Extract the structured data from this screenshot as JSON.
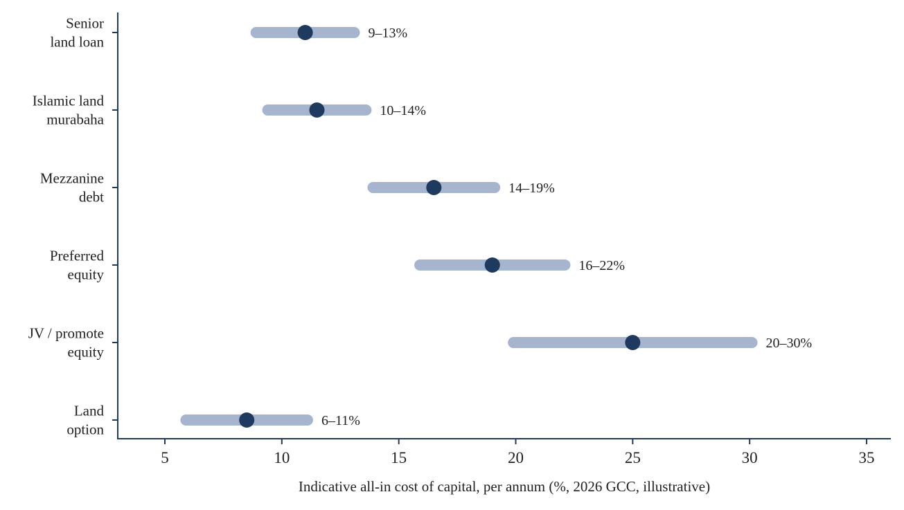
{
  "chart_data": {
    "type": "range-dot",
    "title": "",
    "xlabel": "Indicative all-in cost of capital, per annum (%, 2026 GCC, illustrative)",
    "ylabel": "",
    "xlim": [
      3,
      36
    ],
    "xticks": [
      5,
      10,
      15,
      20,
      25,
      30,
      35
    ],
    "grid": false,
    "legend": "none",
    "colors": {
      "range": "#a5b4cf",
      "point": "#1e3a5f",
      "axis": "#1e3a5f"
    },
    "rows": [
      {
        "label_lines": [
          "Senior",
          "land loan"
        ],
        "low": 8.9,
        "high": 13.1,
        "point": 11.0,
        "range_label": "9–13%"
      },
      {
        "label_lines": [
          "Islamic land",
          "murabaha"
        ],
        "low": 9.4,
        "high": 13.6,
        "point": 11.5,
        "range_label": "10–14%"
      },
      {
        "label_lines": [
          "Mezzanine",
          "debt"
        ],
        "low": 13.9,
        "high": 19.1,
        "point": 16.5,
        "range_label": "14–19%"
      },
      {
        "label_lines": [
          "Preferred",
          "equity"
        ],
        "low": 15.9,
        "high": 22.1,
        "point": 19.0,
        "range_label": "16–22%"
      },
      {
        "label_lines": [
          "JV / promote",
          "equity"
        ],
        "low": 19.9,
        "high": 30.1,
        "point": 25.0,
        "range_label": "20–30%"
      },
      {
        "label_lines": [
          "Land",
          "option"
        ],
        "low": 5.9,
        "high": 11.1,
        "point": 8.5,
        "range_label": "6–11%"
      }
    ]
  }
}
